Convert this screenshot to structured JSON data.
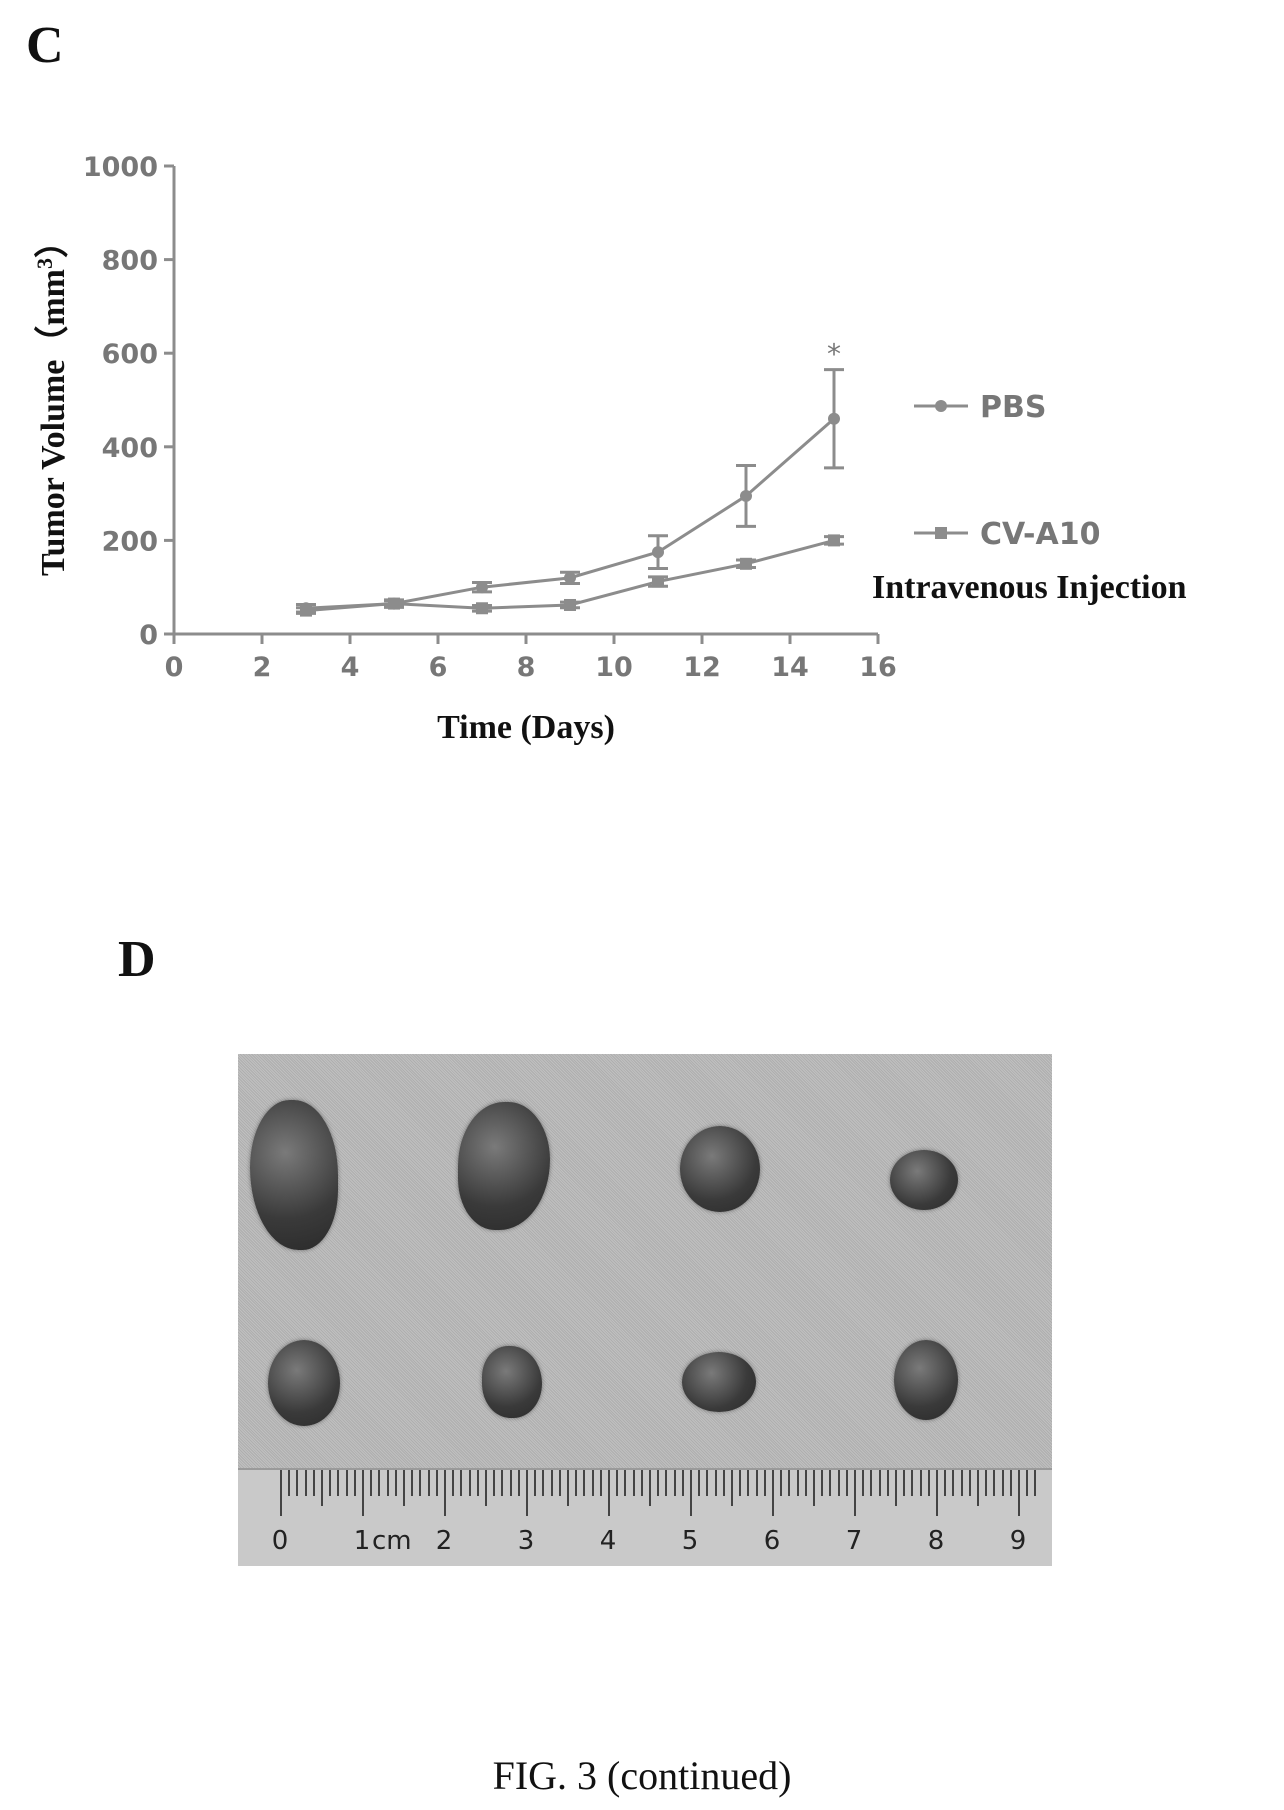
{
  "panel_c": {
    "label": "C"
  },
  "panel_d": {
    "label": "D"
  },
  "chart_data": {
    "type": "line",
    "xlabel": "Time (Days)",
    "ylabel_main": "Tumor Volume",
    "ylabel_unit_open": "（mm",
    "ylabel_unit_sup": "3",
    "ylabel_unit_close": "）",
    "xlim": [
      0,
      16
    ],
    "ylim": [
      0,
      1000
    ],
    "xticks": [
      0,
      2,
      4,
      6,
      8,
      10,
      12,
      14,
      16
    ],
    "yticks": [
      0,
      200,
      400,
      600,
      800,
      1000
    ],
    "legend_placement": "right",
    "legend_caption": "Intravenous Injection",
    "significance_marker": {
      "text": "*",
      "x": 15
    },
    "series": [
      {
        "name": "PBS",
        "x": [
          3,
          5,
          7,
          9,
          11,
          13,
          15
        ],
        "y": [
          55,
          65,
          100,
          120,
          175,
          295,
          460
        ],
        "err": [
          8,
          8,
          10,
          12,
          35,
          65,
          105
        ],
        "color": "#8c8c8c"
      },
      {
        "name": "CV-A10",
        "x": [
          3,
          5,
          7,
          9,
          11,
          13,
          15
        ],
        "y": [
          50,
          65,
          55,
          62,
          112,
          150,
          200
        ],
        "err": [
          6,
          6,
          6,
          6,
          10,
          8,
          8
        ],
        "color": "#8c8c8c"
      }
    ]
  },
  "photo": {
    "ruler_numbers": [
      "0",
      "1",
      "2",
      "3",
      "4",
      "5",
      "6",
      "7",
      "8",
      "9"
    ],
    "ruler_unit": "cm"
  },
  "caption": "FIG. 3 (continued)"
}
